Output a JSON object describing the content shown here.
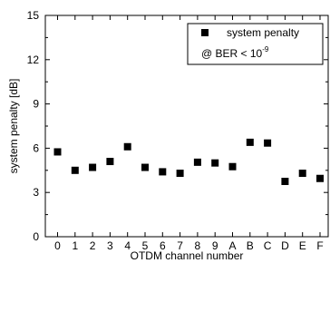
{
  "chart_data": {
    "type": "scatter",
    "xlabel": "OTDM channel number",
    "ylabel": "system penalty [dB]",
    "categories": [
      "0",
      "1",
      "2",
      "3",
      "4",
      "5",
      "6",
      "7",
      "8",
      "9",
      "A",
      "B",
      "C",
      "D",
      "E",
      "F"
    ],
    "series": [
      {
        "name": "system penalty",
        "marker": "square",
        "color": "#000000",
        "values": [
          5.75,
          4.5,
          4.7,
          5.1,
          6.1,
          4.7,
          4.4,
          4.3,
          5.05,
          5.0,
          4.75,
          6.4,
          6.35,
          3.75,
          4.3,
          3.95
        ]
      }
    ],
    "ylim": [
      0,
      15
    ],
    "yticks": [
      0,
      3,
      6,
      9,
      12,
      15
    ],
    "grid": false,
    "legend": {
      "placement": "top-right",
      "entry": "system penalty",
      "note_prefix": "@ BER < 10",
      "note_exponent": "-9"
    }
  }
}
